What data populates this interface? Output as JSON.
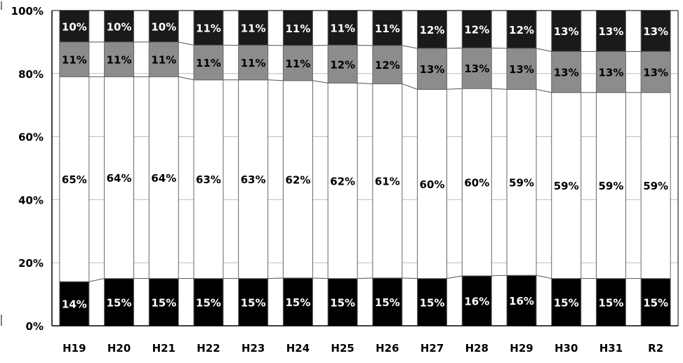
{
  "chart_data": {
    "type": "bar",
    "stacked": true,
    "normalized": true,
    "categories": [
      "H19",
      "H20",
      "H21",
      "H22",
      "H23",
      "H24",
      "H25",
      "H26",
      "H27",
      "H28",
      "H29",
      "H30",
      "H31",
      "R2"
    ],
    "series": [
      {
        "values": [
          14,
          15,
          15,
          15,
          15,
          15,
          15,
          15,
          15,
          16,
          16,
          15,
          15,
          15
        ],
        "labels": [
          "14%",
          "15%",
          "15%",
          "15%",
          "15%",
          "15%",
          "15%",
          "15%",
          "15%",
          "16%",
          "16%",
          "15%",
          "15%",
          "15%"
        ],
        "color": "#000000",
        "label_color": "#ffffff"
      },
      {
        "values": [
          65,
          64,
          64,
          63,
          63,
          62,
          62,
          61,
          60,
          60,
          59,
          59,
          59,
          59
        ],
        "labels": [
          "65%",
          "64%",
          "64%",
          "63%",
          "63%",
          "62%",
          "62%",
          "61%",
          "60%",
          "60%",
          "59%",
          "59%",
          "59%",
          "59%"
        ],
        "color": "#ffffff",
        "label_color": "#000000"
      },
      {
        "values": [
          11,
          11,
          11,
          11,
          11,
          11,
          12,
          12,
          13,
          13,
          13,
          13,
          13,
          13
        ],
        "labels": [
          "11%",
          "11%",
          "11%",
          "11%",
          "11%",
          "11%",
          "12%",
          "12%",
          "13%",
          "13%",
          "13%",
          "13%",
          "13%",
          "13%"
        ],
        "color": "#8c8c8c",
        "label_color": "#000000"
      },
      {
        "values": [
          10,
          10,
          10,
          11,
          11,
          11,
          11,
          11,
          12,
          12,
          12,
          13,
          13,
          13
        ],
        "labels": [
          "10%",
          "10%",
          "10%",
          "11%",
          "11%",
          "11%",
          "11%",
          "11%",
          "12%",
          "12%",
          "12%",
          "13%",
          "13%",
          "13%"
        ],
        "color": "#1a1a1a",
        "label_color": "#ffffff"
      }
    ],
    "y_ticks": [
      "0%",
      "20%",
      "40%",
      "60%",
      "80%",
      "100%"
    ],
    "ylim": [
      0,
      100
    ],
    "grid": true,
    "connector_lines": true,
    "legend": "none"
  }
}
